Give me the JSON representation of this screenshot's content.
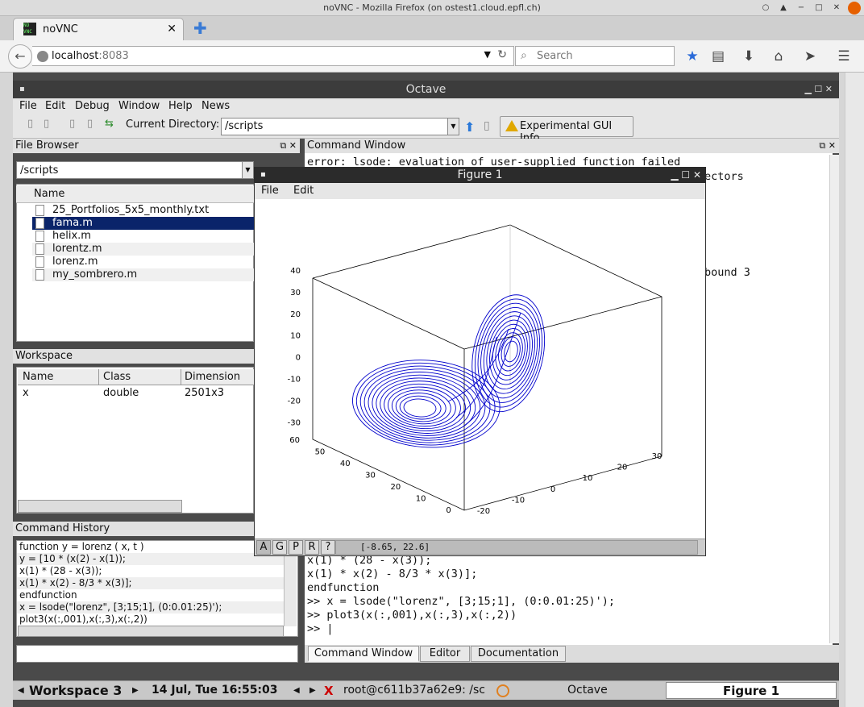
{
  "browser": {
    "title": "noVNC - Mozilla Firefox (on ostest1.cloud.epfl.ch)",
    "tab_label": "noVNC",
    "tab_favicon_text": "NO VNC",
    "url_host": "localhost",
    "url_port": ":8083",
    "search_placeholder": "Search"
  },
  "octave": {
    "window_title": "Octave",
    "menu": [
      "File",
      "Edit",
      "Debug",
      "Window",
      "Help",
      "News"
    ],
    "current_dir_label": "Current Directory:",
    "current_dir_value": "/scripts",
    "gui_info_label": "Experimental GUI Info"
  },
  "file_browser": {
    "title": "File Browser",
    "path": "/scripts",
    "column": "Name",
    "files": [
      "25_Portfolios_5x5_monthly.txt",
      "fama.m",
      "helix.m",
      "lorentz.m",
      "lorenz.m",
      "my_sombrero.m"
    ],
    "selected_index": 1
  },
  "workspace": {
    "title": "Workspace",
    "columns": [
      "Name",
      "Class",
      "Dimension"
    ],
    "rows": [
      [
        "x",
        "double",
        "2501x3"
      ]
    ]
  },
  "command_history": {
    "title": "Command History",
    "lines": [
      "function y = lorenz ( x, t )",
      "y = [10 * (x(2) - x(1));",
      "x(1) * (28 - x(3));",
      "x(1) * x(2) - 8/3 * x(3)];",
      "endfunction",
      "x = lsode(\"lorenz\", [3;15;1], (0:0.01:25)');",
      "plot3(x(:,001),x(:,3),x(:,2))"
    ]
  },
  "command_window": {
    "title": "Command Window",
    "top_lines": [
      "error: lsode: evaluation of user-supplied function failed"
    ],
    "right_fragments": [
      "ectors",
      "bound 3"
    ],
    "bottom_lines": [
      "x(1) * (28 - x(3));",
      "x(1) * x(2) - 8/3 * x(3)];",
      "endfunction",
      ">> x = lsode(\"lorenz\", [3;15;1], (0:0.01:25)');",
      ">> plot3(x(:,001),x(:,3),x(:,2))",
      ">> |"
    ],
    "tabs": [
      "Command Window",
      "Editor",
      "Documentation"
    ]
  },
  "figure": {
    "title": "Figure 1",
    "menu": [
      "File",
      "Edit"
    ],
    "tool_buttons": [
      "A",
      "G",
      "P",
      "R",
      "?"
    ],
    "coords": "[-8.65, 22.6]"
  },
  "chart_data": {
    "type": "line",
    "title": "",
    "z_ticks": [
      "40",
      "30",
      "20",
      "10",
      "0",
      "-10",
      "-20",
      "-30"
    ],
    "x_ticks": [
      "60",
      "50",
      "40",
      "30",
      "20",
      "10",
      "0"
    ],
    "y_ticks": [
      "-20",
      "-10",
      "0",
      "10",
      "20",
      "30"
    ],
    "series": [
      {
        "values": []
      }
    ],
    "line_color": "#0000cc"
  },
  "taskbar": {
    "workspace": "Workspace 3",
    "datetime": "14 Jul, Tue 16:55:03",
    "terminal": "root@c611b37a62e9: /sc",
    "octave": "Octave",
    "figure": "Figure 1"
  }
}
